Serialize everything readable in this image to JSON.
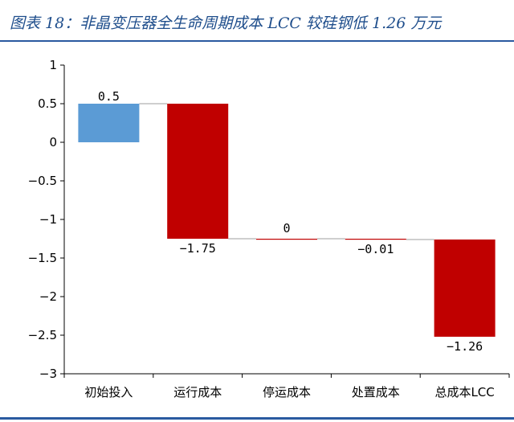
{
  "figure": {
    "title": "图表 18：非晶变压器全生命周期成本 LCC 较硅钢低 1.26 万元"
  },
  "chart_data": {
    "type": "bar",
    "subtype": "waterfall",
    "title": "图表 18：非晶变压器全生命周期成本 LCC 较硅钢低 1.26 万元",
    "xlabel": "",
    "ylabel": "",
    "ylim": [
      -3,
      1
    ],
    "yticks": [
      1,
      0.5,
      0,
      -0.5,
      -1,
      -1.5,
      -2,
      -2.5,
      -3
    ],
    "ytick_labels": [
      "1",
      "0.5",
      "0",
      "−0.5",
      "−1",
      "−1.5",
      "−2",
      "−2.5",
      "−3"
    ],
    "categories": [
      "初始投入",
      "运行成本",
      "停运成本",
      "处置成本",
      "总成本LCC"
    ],
    "values": [
      0.5,
      -1.75,
      0,
      -0.01,
      -1.26
    ],
    "data_labels": [
      "0.5",
      "−1.75",
      "0",
      "−0.01",
      "−1.26"
    ],
    "bars": [
      {
        "start": 0,
        "end": 0.5,
        "color": "#5b9bd5"
      },
      {
        "start": 0.5,
        "end": -1.25,
        "color": "#c00000"
      },
      {
        "start": -1.25,
        "end": -1.25,
        "color": "#c00000"
      },
      {
        "start": -1.25,
        "end": -1.26,
        "color": "#c00000"
      },
      {
        "start": -1.26,
        "end": -2.52,
        "color": "#c00000"
      }
    ],
    "connector_color": "#bfbfbf",
    "grid": false,
    "legend": "none"
  }
}
